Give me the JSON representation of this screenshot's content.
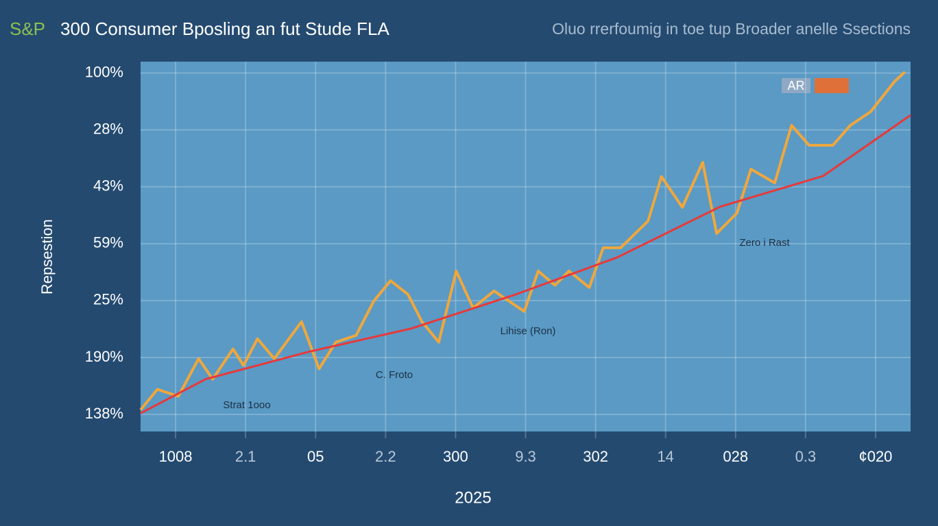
{
  "chart_data": {
    "type": "line",
    "title_prefix": "S&P",
    "title": "300 Consumer Bposling an fut Stude FLA",
    "subtitle": "Oluo rrerfoumig in toe tup Broader anelle Ssections",
    "y_label": "Repsestion",
    "x_label": "2025",
    "legend_label": "AR",
    "annotations": [
      "Strat 1ooo",
      "C. Froto",
      "Lihise (Ron)",
      "Zero i Rast"
    ],
    "xlim": [
      0,
      11
    ],
    "xticks": [
      {
        "value": 0.5,
        "label": "1008"
      },
      {
        "value": 1.5,
        "label": "2.1"
      },
      {
        "value": 2.5,
        "label": "05"
      },
      {
        "value": 3.5,
        "label": "2.2"
      },
      {
        "value": 4.5,
        "label": "300"
      },
      {
        "value": 5.5,
        "label": "9.3"
      },
      {
        "value": 6.5,
        "label": "302"
      },
      {
        "value": 7.5,
        "label": "14"
      },
      {
        "value": 8.5,
        "label": "028"
      },
      {
        "value": 9.5,
        "label": "0.3"
      },
      {
        "value": 10.5,
        "label": "¢020"
      }
    ],
    "ylim": [
      -0.3,
      6.2
    ],
    "yticks": [
      {
        "value": 0,
        "label": "138%"
      },
      {
        "value": 1,
        "label": "190%"
      },
      {
        "value": 2,
        "label": "25%"
      },
      {
        "value": 3,
        "label": "59%"
      },
      {
        "value": 4,
        "label": "43%"
      },
      {
        "value": 5,
        "label": "28%"
      },
      {
        "value": 6,
        "label": "100%"
      }
    ],
    "grid": true,
    "series": [
      {
        "color": "#f0a73c",
        "x": [
          0,
          0.24,
          0.54,
          0.83,
          1.03,
          1.32,
          1.47,
          1.67,
          1.91,
          2.3,
          2.55,
          2.79,
          3.08,
          3.33,
          3.57,
          3.82,
          4.02,
          4.26,
          4.51,
          4.75,
          5.05,
          5.48,
          5.68,
          5.92,
          6.12,
          6.41,
          6.61,
          6.86,
          7.25,
          7.44,
          7.74,
          8.03,
          8.23,
          8.52,
          8.72,
          9.06,
          9.3,
          9.55,
          9.89,
          10.14,
          10.43,
          10.77,
          10.92
        ],
        "values": [
          0.08,
          0.44,
          0.32,
          0.98,
          0.62,
          1.15,
          0.86,
          1.33,
          0.98,
          1.63,
          0.8,
          1.27,
          1.39,
          1.99,
          2.35,
          2.11,
          1.63,
          1.27,
          2.52,
          1.87,
          2.17,
          1.81,
          2.52,
          2.27,
          2.52,
          2.23,
          2.93,
          2.93,
          3.4,
          4.18,
          3.64,
          4.43,
          3.18,
          3.54,
          4.31,
          4.07,
          5.08,
          4.73,
          4.73,
          5.08,
          5.32,
          5.85,
          6.02
        ]
      },
      {
        "color": "#e8383a",
        "x": [
          0,
          0.93,
          2.4,
          3.87,
          5.34,
          6.81,
          8.28,
          9.75,
          11.0
        ],
        "values": [
          0.02,
          0.62,
          1.1,
          1.51,
          2.1,
          2.76,
          3.65,
          4.19,
          5.26
        ]
      }
    ]
  }
}
